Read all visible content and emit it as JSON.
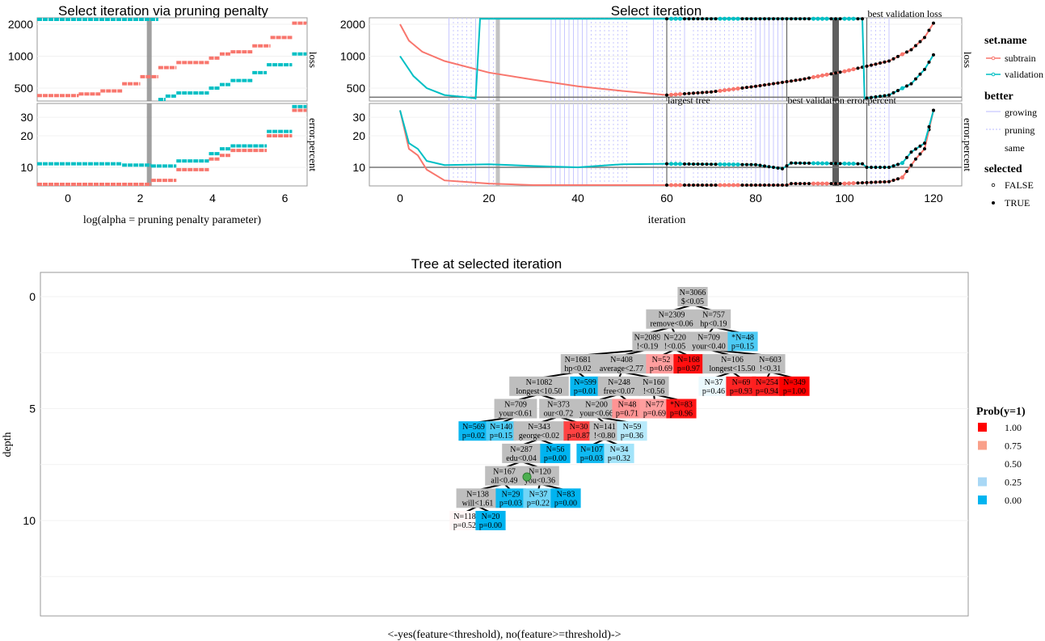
{
  "chart_data": [
    {
      "type": "line",
      "title": "Select iteration via pruning penalty",
      "xlabel": "log(alpha = pruning penalty parameter)",
      "xlim": [
        -0.85,
        6.6
      ],
      "x_ticks": [
        "0",
        "2",
        "4",
        "6"
      ],
      "x_tick_values": [
        0,
        2,
        4,
        6
      ],
      "facets": [
        "loss",
        "error.percent"
      ],
      "loss_ticks": [
        2000,
        1000,
        500
      ],
      "error_ticks": [
        30,
        20,
        10
      ],
      "y_scale": "log",
      "selected_alpha": 2.25,
      "series": [
        {
          "name": "subtrain",
          "color": "#f8766d",
          "loss_steps": [
            [
              -0.85,
              0.3,
              425
            ],
            [
              0.3,
              0.9,
              440
            ],
            [
              0.9,
              1.5,
              470
            ],
            [
              1.5,
              2.0,
              550
            ],
            [
              2.0,
              2.5,
              640
            ],
            [
              2.5,
              3.0,
              780
            ],
            [
              3.0,
              3.9,
              870
            ],
            [
              3.9,
              4.2,
              960
            ],
            [
              4.2,
              4.5,
              1050
            ],
            [
              4.5,
              5.1,
              1100
            ],
            [
              5.1,
              5.6,
              1250
            ],
            [
              5.6,
              6.2,
              1500
            ],
            [
              6.2,
              6.6,
              2050
            ]
          ],
          "error_steps": [
            [
              -0.85,
              1.5,
              5.2
            ],
            [
              1.5,
              2.3,
              6.7
            ],
            [
              2.3,
              3.0,
              7.5
            ],
            [
              3.0,
              3.9,
              9.5
            ],
            [
              3.9,
              4.2,
              12
            ],
            [
              4.2,
              4.5,
              13
            ],
            [
              4.5,
              5.5,
              14.5
            ],
            [
              5.5,
              6.2,
              20
            ],
            [
              6.2,
              6.6,
              35
            ]
          ]
        },
        {
          "name": "validation",
          "color": "#00bfc4",
          "loss_steps": [
            [
              -0.85,
              2.5,
              2250
            ],
            [
              2.5,
              2.7,
              390
            ],
            [
              2.7,
              3.0,
              420
            ],
            [
              3.0,
              3.9,
              450
            ],
            [
              3.9,
              4.2,
              500
            ],
            [
              4.2,
              4.5,
              540
            ],
            [
              4.5,
              5.1,
              590
            ],
            [
              5.1,
              5.5,
              700
            ],
            [
              5.5,
              6.2,
              830
            ],
            [
              6.2,
              6.6,
              1050
            ]
          ],
          "error_steps": [
            [
              -0.85,
              1.5,
              10.8
            ],
            [
              1.5,
              2.3,
              10.5
            ],
            [
              2.3,
              3.0,
              10.3
            ],
            [
              3.0,
              3.9,
              11.5
            ],
            [
              3.9,
              4.2,
              13.5
            ],
            [
              4.2,
              4.5,
              15
            ],
            [
              4.5,
              5.5,
              16
            ],
            [
              5.5,
              6.2,
              22
            ],
            [
              6.2,
              6.6,
              38
            ]
          ]
        }
      ]
    },
    {
      "type": "line",
      "title": "Select iteration",
      "xlabel": "iteration",
      "xlim": [
        -7,
        127
      ],
      "x_ticks": [
        "0",
        "20",
        "40",
        "60",
        "80",
        "100",
        "120"
      ],
      "x_tick_values": [
        0,
        20,
        40,
        60,
        80,
        100,
        120
      ],
      "facets": [
        "loss",
        "error.percent"
      ],
      "loss_ticks": [
        2000,
        1000,
        500
      ],
      "error_ticks": [
        30,
        20,
        10
      ],
      "y_scale": "log",
      "selected_iteration": 98,
      "highlight_iteration": 22,
      "loss_hline": 410,
      "error_hline": 10,
      "annotations": [
        {
          "label": "largest tree",
          "iteration": 60
        },
        {
          "label": "best validation error.percent",
          "iteration": 87
        },
        {
          "label": "best validation loss",
          "iteration": 105
        }
      ],
      "growing_iterations": [
        11,
        17,
        20,
        34,
        35,
        36,
        37,
        38,
        39,
        40,
        41,
        42,
        57,
        64,
        80,
        81,
        82,
        83,
        84,
        85,
        86,
        87,
        110
      ],
      "pruning_iterations": [
        12,
        13,
        14,
        15,
        16,
        21,
        43,
        44,
        45,
        46,
        47,
        48,
        49,
        50,
        51,
        58,
        59,
        61,
        62,
        63,
        66,
        67,
        68,
        69,
        70,
        71,
        72,
        73,
        74,
        75,
        76,
        77,
        78,
        79,
        106,
        107,
        108,
        109
      ],
      "selected_false_iterations": [
        61,
        62,
        63,
        72,
        73,
        74,
        75,
        76,
        93,
        94,
        95,
        96,
        100,
        101,
        102,
        113
      ],
      "points_from_iteration": 60,
      "series": [
        {
          "name": "subtrain",
          "color": "#f8766d",
          "loss": [
            [
              0,
              2000
            ],
            [
              2,
              1400
            ],
            [
              5,
              1100
            ],
            [
              10,
              900
            ],
            [
              20,
              700
            ],
            [
              30,
              600
            ],
            [
              40,
              520
            ],
            [
              50,
              470
            ],
            [
              60,
              430
            ],
            [
              70,
              460
            ],
            [
              80,
              520
            ],
            [
              90,
              600
            ],
            [
              100,
              720
            ],
            [
              110,
              900
            ],
            [
              115,
              1150
            ],
            [
              118,
              1500
            ],
            [
              120,
              2050
            ]
          ],
          "error": [
            [
              0,
              35
            ],
            [
              2,
              15
            ],
            [
              4,
              13
            ],
            [
              6,
              9.5
            ],
            [
              10,
              7.5
            ],
            [
              20,
              7
            ],
            [
              30,
              6.7
            ],
            [
              40,
              6
            ],
            [
              50,
              5.5
            ],
            [
              60,
              5.2
            ],
            [
              70,
              5.5
            ],
            [
              80,
              6
            ],
            [
              87,
              6.3
            ],
            [
              88,
              7
            ],
            [
              100,
              7
            ],
            [
              110,
              7.3
            ],
            [
              113,
              8
            ],
            [
              116,
              12
            ],
            [
              118,
              15
            ],
            [
              120,
              35
            ]
          ]
        },
        {
          "name": "validation",
          "color": "#00bfc4",
          "loss": [
            [
              0,
              1000
            ],
            [
              3,
              650
            ],
            [
              6,
              500
            ],
            [
              10,
              430
            ],
            [
              15,
              410
            ],
            [
              17,
              400
            ],
            [
              18,
              2250
            ],
            [
              104,
              2250
            ],
            [
              104.5,
              400
            ],
            [
              110,
              430
            ],
            [
              115,
              550
            ],
            [
              118,
              750
            ],
            [
              120,
              1030
            ]
          ],
          "error": [
            [
              0,
              35
            ],
            [
              2,
              17
            ],
            [
              4,
              15
            ],
            [
              6,
              11.5
            ],
            [
              10,
              10.5
            ],
            [
              20,
              10.7
            ],
            [
              30,
              10.3
            ],
            [
              40,
              10
            ],
            [
              50,
              10.7
            ],
            [
              60,
              10.8
            ],
            [
              80,
              10.6
            ],
            [
              86,
              9.7
            ],
            [
              88,
              11
            ],
            [
              104,
              10.8
            ],
            [
              105,
              10
            ],
            [
              110,
              10
            ],
            [
              113,
              11
            ],
            [
              115,
              14
            ],
            [
              118,
              17
            ],
            [
              120,
              35
            ]
          ]
        }
      ]
    },
    {
      "type": "tree",
      "title": "Tree at selected iteration",
      "xlabel": "<-yes(feature<threshold), no(feature>=threshold)->",
      "ylabel": "depth",
      "y_ticks": [
        "0",
        "5",
        "10"
      ],
      "y_tick_values": [
        0,
        5,
        10
      ],
      "ylim": [
        13.5,
        -1.1
      ],
      "nodes": [
        {
          "n": "N=3066",
          "t": "$<0.05",
          "depth": 0,
          "parent": null
        },
        {
          "n": "N=2309",
          "t": "remove<0.06",
          "depth": 1,
          "parent": 0
        },
        {
          "n": "N=757",
          "t": "hp<0.19",
          "depth": 1,
          "parent": 0
        },
        {
          "n": "N=2089",
          "t": "!<0.19",
          "depth": 2,
          "parent": 1
        },
        {
          "n": "N=220",
          "t": "!<0.05",
          "depth": 2,
          "parent": 1
        },
        {
          "n": "N=709",
          "t": "your<0.40",
          "depth": 2,
          "parent": 2
        },
        {
          "n": "*N=48",
          "t": "p=0.15",
          "depth": 2,
          "parent": 2,
          "p": 0.15
        },
        {
          "n": "N=1681",
          "t": "hp<0.02",
          "depth": 3,
          "parent": 3
        },
        {
          "n": "N=408",
          "t": "average<2.77",
          "depth": 3,
          "parent": 3
        },
        {
          "n": "N=52",
          "t": "p=0.69",
          "depth": 3,
          "parent": 4,
          "p": 0.69
        },
        {
          "n": "N=168",
          "t": "p=0.97",
          "depth": 3,
          "parent": 4,
          "p": 0.97
        },
        {
          "n": "N=106",
          "t": "longest<15.50",
          "depth": 3,
          "parent": 5
        },
        {
          "n": "N=603",
          "t": "!<0.31",
          "depth": 3,
          "parent": 5
        },
        {
          "n": "N=1082",
          "t": "longest<10.50",
          "depth": 4,
          "parent": 7
        },
        {
          "n": "N=599",
          "t": "p=0.01",
          "depth": 4,
          "parent": 7,
          "p": 0.01
        },
        {
          "n": "N=248",
          "t": "free<0.07",
          "depth": 4,
          "parent": 8
        },
        {
          "n": "N=160",
          "t": "!<0.56",
          "depth": 4,
          "parent": 8
        },
        {
          "n": "N=37",
          "t": "p=0.46",
          "depth": 4,
          "parent": 11,
          "p": 0.46
        },
        {
          "n": "N=69",
          "t": "p=0.93",
          "depth": 4,
          "parent": 11,
          "p": 0.93
        },
        {
          "n": "N=254",
          "t": "p=0.94",
          "depth": 4,
          "parent": 12,
          "p": 0.94
        },
        {
          "n": "N=349",
          "t": "p=1.00",
          "depth": 4,
          "parent": 12,
          "p": 1.0
        },
        {
          "n": "N=709",
          "t": "your<0.61",
          "depth": 5,
          "parent": 13
        },
        {
          "n": "N=373",
          "t": "our<0.72",
          "depth": 5,
          "parent": 13
        },
        {
          "n": "N=200",
          "t": "your<0.66",
          "depth": 5,
          "parent": 15
        },
        {
          "n": "N=48",
          "t": "p=0.71",
          "depth": 5,
          "parent": 15,
          "p": 0.71
        },
        {
          "n": "N=77",
          "t": "p=0.69",
          "depth": 5,
          "parent": 16,
          "p": 0.69
        },
        {
          "n": "*N=83",
          "t": "p=0.96",
          "depth": 5,
          "parent": 16,
          "p": 0.96
        },
        {
          "n": "N=569",
          "t": "p=0.02",
          "depth": 6,
          "parent": 21,
          "p": 0.02
        },
        {
          "n": "N=140",
          "t": "p=0.15",
          "depth": 6,
          "parent": 21,
          "p": 0.15
        },
        {
          "n": "N=343",
          "t": "george<0.02",
          "depth": 6,
          "parent": 22
        },
        {
          "n": "N=30",
          "t": "p=0.87",
          "depth": 6,
          "parent": 22,
          "p": 0.87
        },
        {
          "n": "N=141",
          "t": "!<0.80",
          "depth": 6,
          "parent": 23
        },
        {
          "n": "N=59",
          "t": "p=0.36",
          "depth": 6,
          "parent": 23,
          "p": 0.36
        },
        {
          "n": "N=287",
          "t": "edu<0.04",
          "depth": 7,
          "parent": 29
        },
        {
          "n": "N=56",
          "t": "p=0.00",
          "depth": 7,
          "parent": 29,
          "p": 0.0
        },
        {
          "n": "N=107",
          "t": "p=0.03",
          "depth": 7,
          "parent": 31,
          "p": 0.03
        },
        {
          "n": "N=34",
          "t": "p=0.32",
          "depth": 7,
          "parent": 31,
          "p": 0.32
        },
        {
          "n": "N=167",
          "t": "all<0.49",
          "depth": 8,
          "parent": 33
        },
        {
          "n": "N=120",
          "t": "you<0.36",
          "depth": 8,
          "parent": 33
        },
        {
          "n": "N=138",
          "t": "will<1.61",
          "depth": 9,
          "parent": 37
        },
        {
          "n": "N=29",
          "t": "p=0.03",
          "depth": 9,
          "parent": 37,
          "p": 0.03
        },
        {
          "n": "N=37",
          "t": "p=0.22",
          "depth": 9,
          "parent": 38,
          "p": 0.22
        },
        {
          "n": "N=83",
          "t": "p=0.00",
          "depth": 9,
          "parent": 38,
          "p": 0.0
        },
        {
          "n": "N=118",
          "t": "p=0.52",
          "depth": 10,
          "parent": 39,
          "p": 0.52
        },
        {
          "n": "N=20",
          "t": "p=0.00",
          "depth": 10,
          "parent": 39,
          "p": 0.0
        }
      ]
    }
  ],
  "legend": {
    "set_name": {
      "title": "set.name",
      "items": [
        "subtrain",
        "validation"
      ]
    },
    "better": {
      "title": "better",
      "items": [
        "growing",
        "pruning",
        "same"
      ]
    },
    "selected": {
      "title": "selected",
      "items": [
        "FALSE",
        "TRUE"
      ]
    },
    "prob": {
      "title": "Prob(y=1)",
      "items": [
        "1.00",
        "0.75",
        "0.50",
        "0.25",
        "0.00"
      ],
      "colors": [
        "#ff0000",
        "#f9a08a",
        "#ffffff",
        "#a9d8f5",
        "#00b4f0"
      ]
    }
  },
  "colors": {
    "subtrain": "#f8766d",
    "validation": "#00bfc4",
    "growing": "#c8c8ff",
    "selected_band": "#555555",
    "node_gray": "#bebebe",
    "marker": "#4caf50"
  }
}
